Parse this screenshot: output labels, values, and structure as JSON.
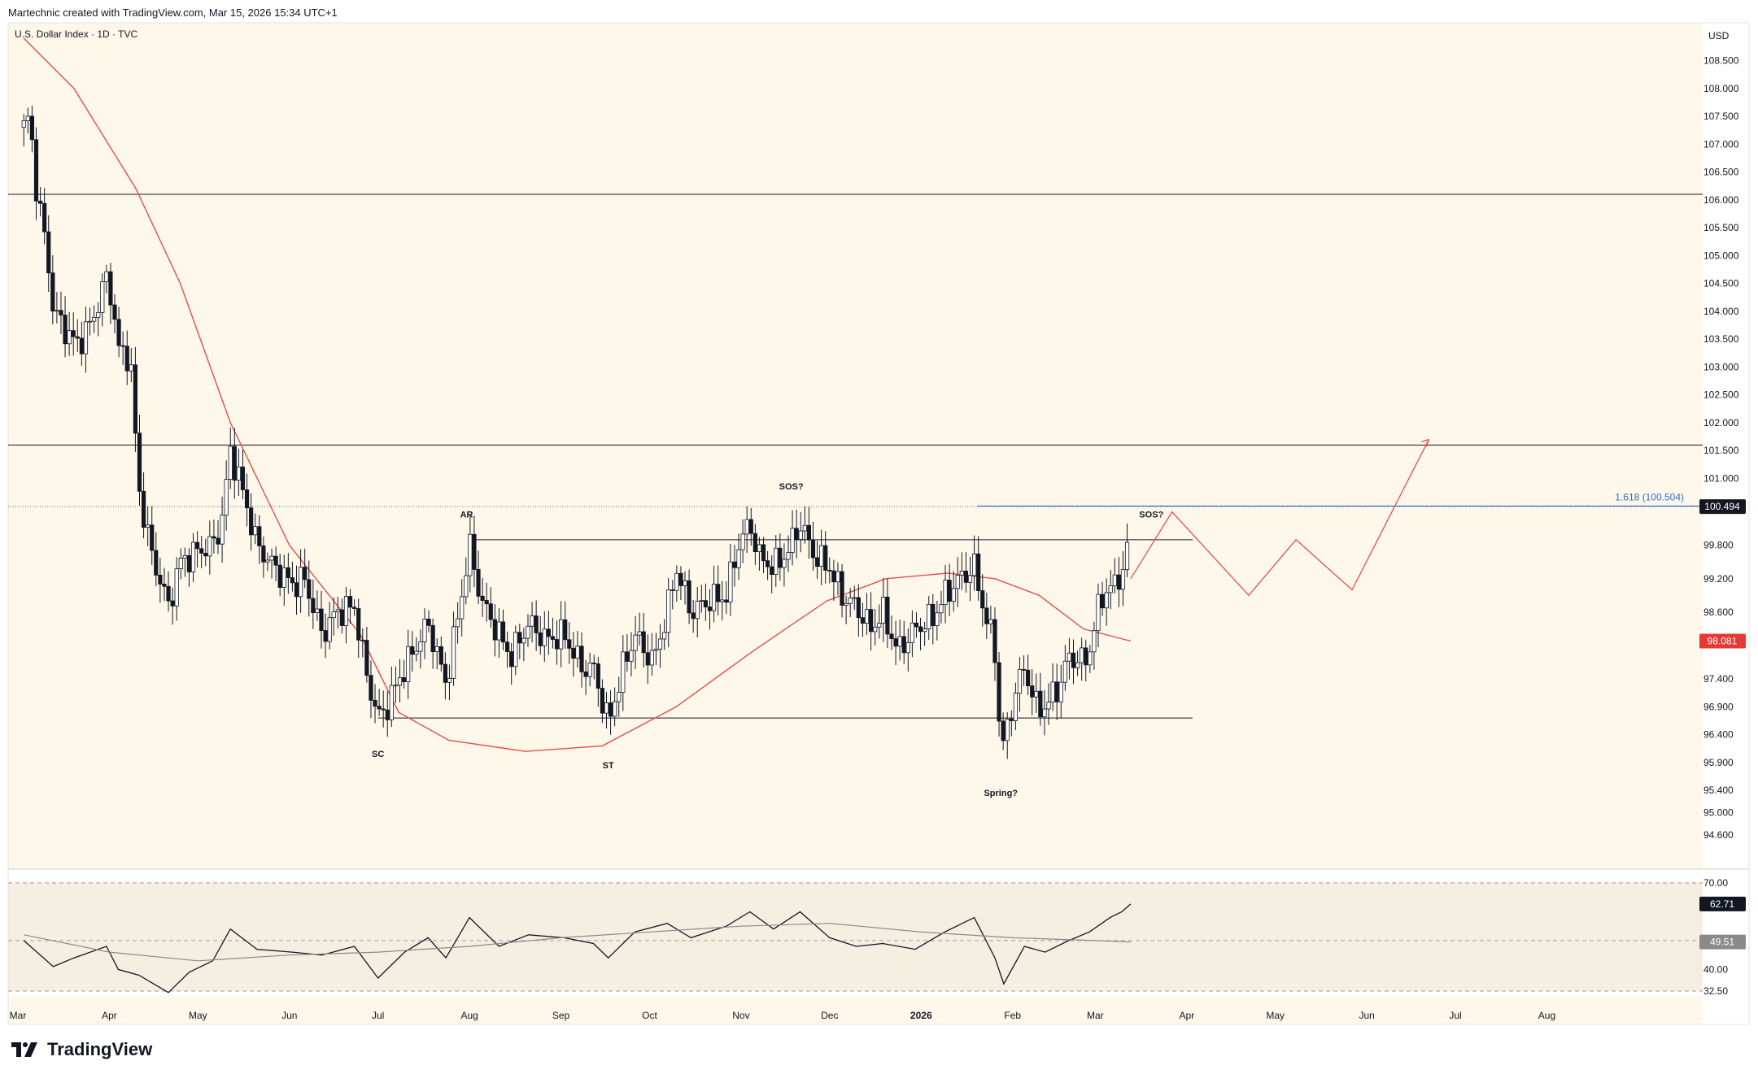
{
  "header": {
    "attribution": "Martechnic created with TradingView.com, Mar 15, 2026 15:34 UTC+1",
    "symbol": "U.S. Dollar Index · 1D · TVC",
    "currency": "USD"
  },
  "branding": {
    "logo_text": "TradingView"
  },
  "colors": {
    "background": "#fdf8ea",
    "rsi_background": "#f4efe0",
    "up_candle": "#ffffff",
    "down_candle": "#131722",
    "ma_red": "#e94b4b",
    "fib_blue": "#2f6bdb",
    "current_price_bg": "#131722",
    "ma_label_bg": "#e53935",
    "rsi_label_bg": "#131722",
    "rsi_ma_label_bg": "#8a8a8a"
  },
  "chart_data": {
    "type": "candlestick",
    "title": "U.S. Dollar Index · 1D · TVC",
    "y_unit": "USD",
    "ylim": [
      94.2,
      109.0
    ],
    "y_ticks": [
      "108.500",
      "108.000",
      "107.500",
      "107.000",
      "106.500",
      "106.000",
      "105.500",
      "105.000",
      "104.500",
      "104.000",
      "103.500",
      "103.000",
      "102.500",
      "102.000",
      "101.500",
      "101.000",
      "100.494",
      "99.800",
      "99.200",
      "98.600",
      "98.081",
      "97.400",
      "96.900",
      "96.400",
      "95.900",
      "95.400",
      "95.000",
      "94.600"
    ],
    "x_ticks": [
      "Mar",
      "Apr",
      "May",
      "Jun",
      "Jul",
      "Aug",
      "Sep",
      "Oct",
      "Nov",
      "Dec",
      "2026",
      "Feb",
      "Mar",
      "Apr",
      "May",
      "Jun",
      "Jul",
      "Aug"
    ],
    "price_path": [
      [
        "2025-03-03",
        107.3
      ],
      [
        "2025-03-05",
        107.5
      ],
      [
        "2025-03-07",
        106.3
      ],
      [
        "2025-03-11",
        105.0
      ],
      [
        "2025-03-13",
        104.0
      ],
      [
        "2025-03-18",
        103.6
      ],
      [
        "2025-03-21",
        103.4
      ],
      [
        "2025-03-26",
        103.8
      ],
      [
        "2025-03-31",
        104.6
      ],
      [
        "2025-04-02",
        104.2
      ],
      [
        "2025-04-04",
        103.3
      ],
      [
        "2025-04-08",
        103.2
      ],
      [
        "2025-04-11",
        100.8
      ],
      [
        "2025-04-15",
        99.7
      ],
      [
        "2025-04-21",
        98.7
      ],
      [
        "2025-04-25",
        99.5
      ],
      [
        "2025-05-01",
        99.7
      ],
      [
        "2025-05-06",
        99.8
      ],
      [
        "2025-05-09",
        100.2
      ],
      [
        "2025-05-12",
        101.5
      ],
      [
        "2025-05-16",
        100.8
      ],
      [
        "2025-05-21",
        99.8
      ],
      [
        "2025-05-27",
        99.4
      ],
      [
        "2025-06-02",
        99.1
      ],
      [
        "2025-06-06",
        99.2
      ],
      [
        "2025-06-12",
        98.2
      ],
      [
        "2025-06-17",
        98.6
      ],
      [
        "2025-06-23",
        98.7
      ],
      [
        "2025-06-27",
        97.5
      ],
      [
        "2025-07-01",
        96.7
      ],
      [
        "2025-07-04",
        96.9
      ],
      [
        "2025-07-09",
        97.5
      ],
      [
        "2025-07-14",
        98.0
      ],
      [
        "2025-07-18",
        98.4
      ],
      [
        "2025-07-24",
        97.3
      ],
      [
        "2025-07-29",
        98.8
      ],
      [
        "2025-08-01",
        99.8
      ],
      [
        "2025-08-05",
        98.8
      ],
      [
        "2025-08-11",
        98.2
      ],
      [
        "2025-08-15",
        97.8
      ],
      [
        "2025-08-21",
        98.4
      ],
      [
        "2025-08-27",
        98.1
      ],
      [
        "2025-09-02",
        98.2
      ],
      [
        "2025-09-08",
        97.6
      ],
      [
        "2025-09-12",
        97.6
      ],
      [
        "2025-09-17",
        96.6
      ],
      [
        "2025-09-22",
        97.6
      ],
      [
        "2025-09-26",
        98.2
      ],
      [
        "2025-10-02",
        97.7
      ],
      [
        "2025-10-07",
        98.6
      ],
      [
        "2025-10-10",
        99.4
      ],
      [
        "2025-10-15",
        98.6
      ],
      [
        "2025-10-21",
        98.8
      ],
      [
        "2025-10-27",
        98.9
      ],
      [
        "2025-10-31",
        99.8
      ],
      [
        "2025-11-04",
        100.2
      ],
      [
        "2025-11-07",
        99.6
      ],
      [
        "2025-11-12",
        99.4
      ],
      [
        "2025-11-17",
        99.7
      ],
      [
        "2025-11-21",
        100.2
      ],
      [
        "2025-11-26",
        99.6
      ],
      [
        "2025-12-01",
        99.4
      ],
      [
        "2025-12-05",
        98.9
      ],
      [
        "2025-12-10",
        98.7
      ],
      [
        "2025-12-15",
        98.3
      ],
      [
        "2025-12-19",
        98.6
      ],
      [
        "2025-12-24",
        97.9
      ],
      [
        "2025-12-30",
        98.3
      ],
      [
        "2026-01-05",
        98.5
      ],
      [
        "2026-01-09",
        98.9
      ],
      [
        "2026-01-14",
        99.2
      ],
      [
        "2026-01-19",
        99.4
      ],
      [
        "2026-01-22",
        98.7
      ],
      [
        "2026-01-26",
        97.9
      ],
      [
        "2026-01-27",
        96.8
      ],
      [
        "2026-01-29",
        96.2
      ],
      [
        "2026-02-02",
        97.2
      ],
      [
        "2026-02-05",
        97.6
      ],
      [
        "2026-02-09",
        96.9
      ],
      [
        "2026-02-12",
        96.9
      ],
      [
        "2026-02-17",
        97.3
      ],
      [
        "2026-02-20",
        97.8
      ],
      [
        "2026-02-25",
        97.7
      ],
      [
        "2026-02-27",
        97.9
      ],
      [
        "2026-03-03",
        98.9
      ],
      [
        "2026-03-06",
        99.0
      ],
      [
        "2026-03-10",
        99.3
      ],
      [
        "2026-03-12",
        99.7
      ],
      [
        "2026-03-13",
        100.494
      ]
    ],
    "moving_average": [
      [
        "2025-03-03",
        108.9
      ],
      [
        "2025-03-20",
        108.0
      ],
      [
        "2025-04-10",
        106.2
      ],
      [
        "2025-04-25",
        104.5
      ],
      [
        "2025-05-12",
        102.0
      ],
      [
        "2025-06-01",
        99.8
      ],
      [
        "2025-06-25",
        98.2
      ],
      [
        "2025-07-08",
        96.8
      ],
      [
        "2025-07-25",
        96.3
      ],
      [
        "2025-08-20",
        96.1
      ],
      [
        "2025-09-15",
        96.2
      ],
      [
        "2025-10-10",
        96.9
      ],
      [
        "2025-11-05",
        97.9
      ],
      [
        "2025-11-30",
        98.8
      ],
      [
        "2025-12-20",
        99.2
      ],
      [
        "2026-01-10",
        99.3
      ],
      [
        "2026-01-26",
        99.2
      ],
      [
        "2026-02-10",
        98.9
      ],
      [
        "2026-02-25",
        98.3
      ],
      [
        "2026-03-13",
        98.081
      ]
    ],
    "horizontal_levels": [
      {
        "price": 106.1,
        "style": "solid"
      },
      {
        "price": 101.6,
        "style": "solid"
      },
      {
        "price": 100.494,
        "style": "dotted"
      }
    ],
    "range_lines": [
      {
        "price": 99.9,
        "from": "2025-08-01",
        "to": "2026-04-03"
      },
      {
        "price": 96.7,
        "from": "2025-07-01",
        "to": "2026-04-03"
      }
    ],
    "fib_level": {
      "label": "1.618 (100.504)",
      "price": 100.504,
      "from": "2026-01-20"
    },
    "projection_path": [
      [
        "2026-03-13",
        99.2
      ],
      [
        "2026-03-27",
        100.4
      ],
      [
        "2026-04-22",
        98.9
      ],
      [
        "2026-05-08",
        99.9
      ],
      [
        "2026-05-27",
        99.0
      ],
      [
        "2026-06-22",
        101.7
      ]
    ],
    "annotations": [
      {
        "text": "AR",
        "date": "2025-07-31",
        "price": 100.3
      },
      {
        "text": "SOS?",
        "date": "2025-11-18",
        "price": 100.8
      },
      {
        "text": "SC",
        "date": "2025-07-01",
        "price": 96.0
      },
      {
        "text": "ST",
        "date": "2025-09-17",
        "price": 95.8
      },
      {
        "text": "Spring?",
        "date": "2026-01-28",
        "price": 95.3
      },
      {
        "text": "SOS?",
        "date": "2026-03-20",
        "price": 100.3
      }
    ],
    "price_labels": [
      {
        "text": "100.494",
        "role": "current"
      },
      {
        "text": "98.081",
        "role": "moving-average"
      }
    ],
    "rsi": {
      "ylim": [
        30,
        73
      ],
      "ticks": [
        "70.00",
        "40.00",
        "32.50"
      ],
      "bands": [
        70,
        50,
        32.5
      ],
      "value_label": "62.71",
      "ma_label": "49.51",
      "values": [
        [
          "2025-03-03",
          50
        ],
        [
          "2025-03-13",
          41
        ],
        [
          "2025-03-20",
          44
        ],
        [
          "2025-03-31",
          48
        ],
        [
          "2025-04-04",
          40
        ],
        [
          "2025-04-11",
          38
        ],
        [
          "2025-04-21",
          32
        ],
        [
          "2025-04-28",
          39
        ],
        [
          "2025-05-06",
          43
        ],
        [
          "2025-05-12",
          54
        ],
        [
          "2025-05-21",
          47
        ],
        [
          "2025-06-02",
          46
        ],
        [
          "2025-06-12",
          45
        ],
        [
          "2025-06-23",
          48
        ],
        [
          "2025-07-01",
          37
        ],
        [
          "2025-07-10",
          46
        ],
        [
          "2025-07-18",
          51
        ],
        [
          "2025-07-24",
          44
        ],
        [
          "2025-08-01",
          58
        ],
        [
          "2025-08-11",
          48
        ],
        [
          "2025-08-21",
          52
        ],
        [
          "2025-09-02",
          51
        ],
        [
          "2025-09-12",
          49
        ],
        [
          "2025-09-17",
          44
        ],
        [
          "2025-09-26",
          53
        ],
        [
          "2025-10-07",
          56
        ],
        [
          "2025-10-15",
          51
        ],
        [
          "2025-10-27",
          55
        ],
        [
          "2025-11-04",
          60
        ],
        [
          "2025-11-12",
          54
        ],
        [
          "2025-11-21",
          60
        ],
        [
          "2025-12-01",
          51
        ],
        [
          "2025-12-10",
          48
        ],
        [
          "2025-12-19",
          49
        ],
        [
          "2025-12-30",
          47
        ],
        [
          "2026-01-09",
          53
        ],
        [
          "2026-01-19",
          58
        ],
        [
          "2026-01-26",
          44
        ],
        [
          "2026-01-29",
          35
        ],
        [
          "2026-02-05",
          48
        ],
        [
          "2026-02-12",
          46
        ],
        [
          "2026-02-20",
          50
        ],
        [
          "2026-02-27",
          53
        ],
        [
          "2026-03-06",
          58
        ],
        [
          "2026-03-10",
          60
        ],
        [
          "2026-03-13",
          62.71
        ]
      ],
      "ma": [
        [
          "2025-03-03",
          52
        ],
        [
          "2025-04-01",
          46
        ],
        [
          "2025-05-01",
          43
        ],
        [
          "2025-06-01",
          45
        ],
        [
          "2025-07-01",
          46
        ],
        [
          "2025-08-01",
          48
        ],
        [
          "2025-09-01",
          51
        ],
        [
          "2025-10-01",
          53
        ],
        [
          "2025-11-01",
          55
        ],
        [
          "2025-12-01",
          56
        ],
        [
          "2026-01-01",
          53
        ],
        [
          "2026-02-01",
          51
        ],
        [
          "2026-03-01",
          50
        ],
        [
          "2026-03-13",
          49.51
        ]
      ]
    }
  }
}
